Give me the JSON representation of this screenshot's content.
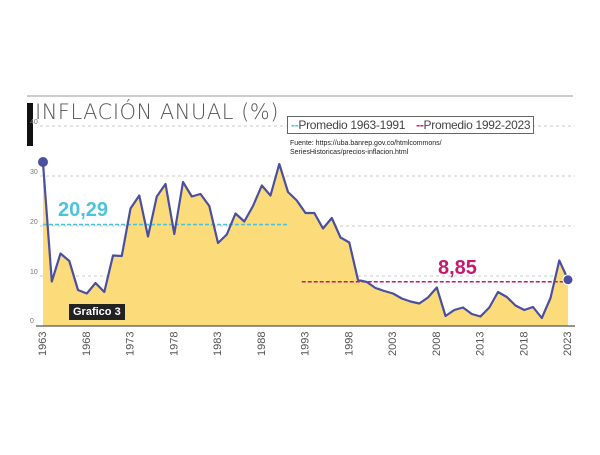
{
  "chart_data": {
    "type": "area",
    "title": "INFLACIÓN ANUAL (%)",
    "badge": "Grafico 3",
    "source": [
      "Fuente: https://uba.banrep.gov.co/htmlcommons/",
      "SeriesHistoricas/precios-inflacion.html"
    ],
    "x": [
      1963,
      1964,
      1965,
      1966,
      1967,
      1968,
      1969,
      1970,
      1971,
      1972,
      1973,
      1974,
      1975,
      1976,
      1977,
      1978,
      1979,
      1980,
      1981,
      1982,
      1983,
      1984,
      1985,
      1986,
      1987,
      1988,
      1989,
      1990,
      1991,
      1992,
      1993,
      1994,
      1995,
      1996,
      1997,
      1998,
      1999,
      2000,
      2001,
      2002,
      2003,
      2004,
      2005,
      2006,
      2007,
      2008,
      2009,
      2010,
      2011,
      2012,
      2013,
      2014,
      2015,
      2016,
      2017,
      2018,
      2019,
      2020,
      2021,
      2022,
      2023
    ],
    "values": [
      32.6,
      8.9,
      14.5,
      13.0,
      7.2,
      6.5,
      8.6,
      6.8,
      14.1,
      14.0,
      23.5,
      26.1,
      17.9,
      25.9,
      28.4,
      18.4,
      28.8,
      25.9,
      26.4,
      24.0,
      16.6,
      18.3,
      22.5,
      20.9,
      24.0,
      28.1,
      26.1,
      32.4,
      26.8,
      25.1,
      22.6,
      22.6,
      19.5,
      21.6,
      17.7,
      16.7,
      9.2,
      8.8,
      7.6,
      7.0,
      6.5,
      5.5,
      4.9,
      4.5,
      5.7,
      7.7,
      2.0,
      3.2,
      3.7,
      2.4,
      1.9,
      3.7,
      6.8,
      5.8,
      4.1,
      3.2,
      3.8,
      1.6,
      5.6,
      13.1,
      9.3
    ],
    "xticks": [
      "1963",
      "1968",
      "1973",
      "1978",
      "1983",
      "1988",
      "1993",
      "1998",
      "2003",
      "2008",
      "2013",
      "2018",
      "2023"
    ],
    "yticks": [
      "0",
      "10",
      "20",
      "30",
      "40"
    ],
    "ylim": [
      0,
      40
    ],
    "xlim": [
      1963,
      2023
    ],
    "grid": true,
    "legend_position": "top-right",
    "averages": [
      {
        "name": "Promedio 1963-1991",
        "value": 20.29,
        "label": "20,29",
        "from": 1963,
        "to": 1991,
        "color": "#4cc3dc"
      },
      {
        "name": "Promedio 1992-2023",
        "value": 8.85,
        "label": "8,85",
        "from": 1992,
        "to": 2023,
        "color": "#c8186e"
      }
    ],
    "colors": {
      "fill": "#fcdc7a",
      "line": "#4a4fa0",
      "grid": "#bbbbbb"
    }
  }
}
